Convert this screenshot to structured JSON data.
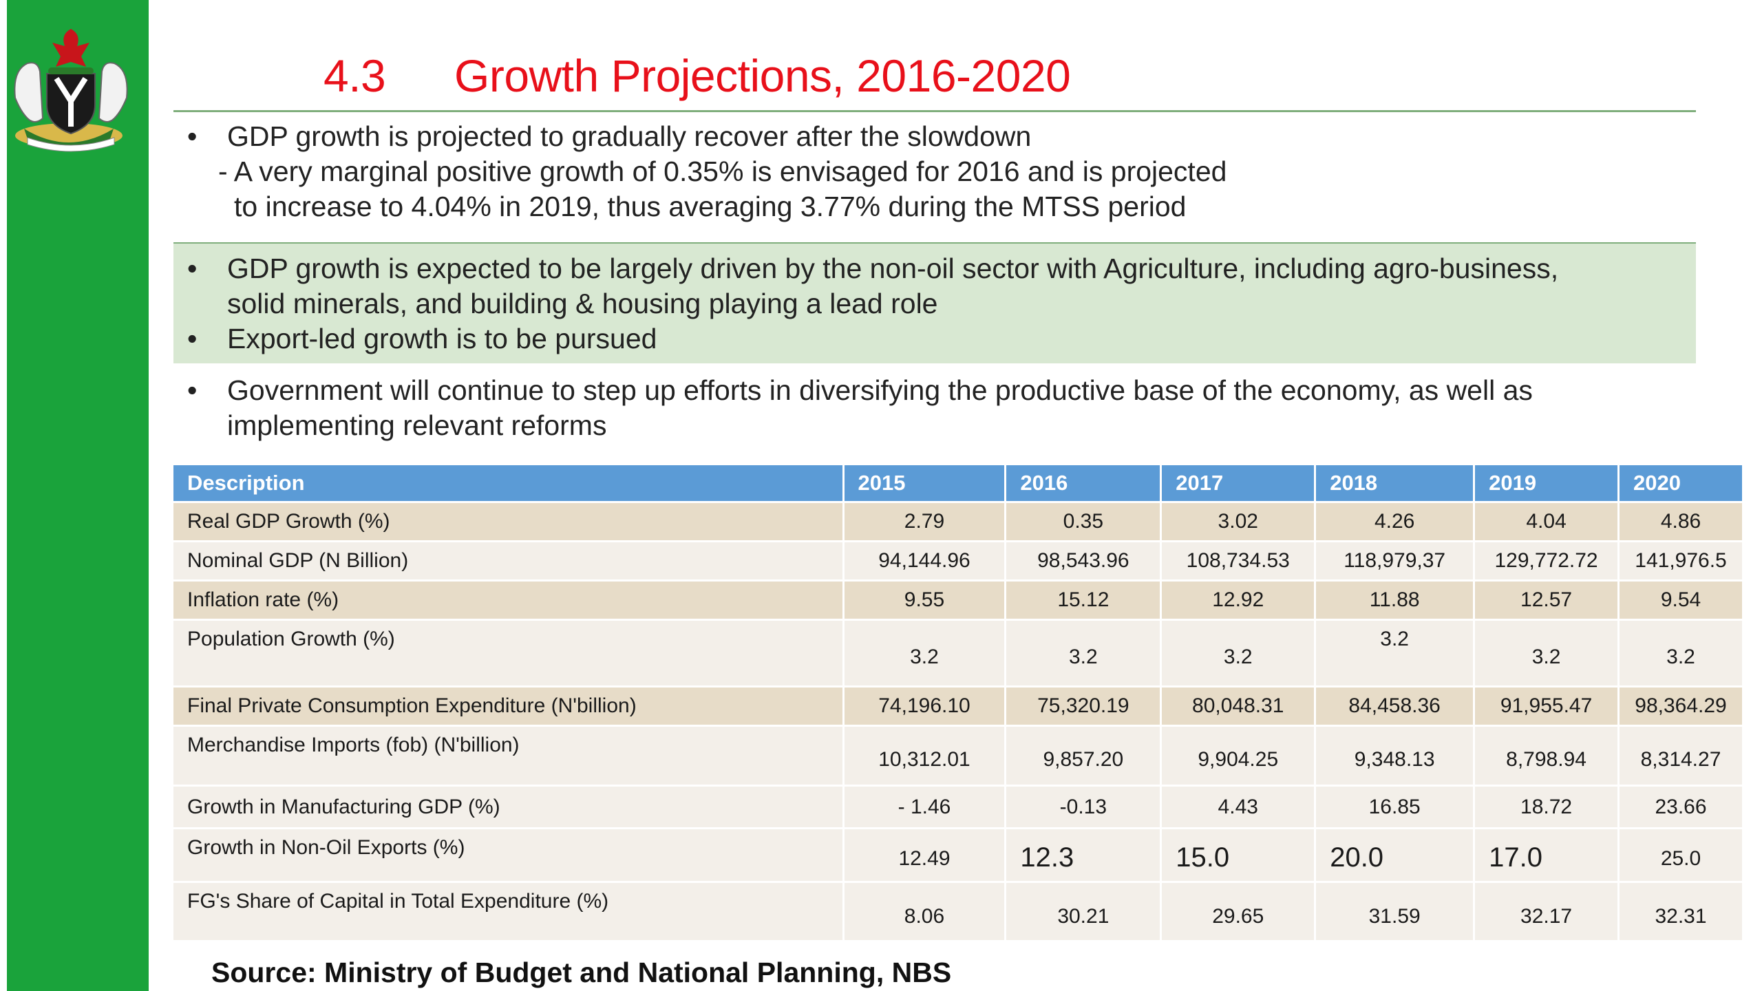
{
  "title": {
    "number": "4.3",
    "text": "Growth Projections, 2016-2020"
  },
  "section1": {
    "bullet": "GDP growth is projected to gradually recover after the slowdown",
    "sub_line1": "- A very marginal positive growth of 0.35% is envisaged for 2016 and is projected",
    "sub_line2": "to increase to 4.04% in 2019, thus averaging 3.77% during the MTSS period"
  },
  "section2": {
    "bullet1_line1": "GDP growth is expected to be largely driven by the non-oil sector with Agriculture, including agro-business,",
    "bullet1_line2": "solid minerals, and building & housing playing a lead role",
    "bullet2": "Export-led growth is to be pursued"
  },
  "section3": {
    "line1": "Government will continue to step up efforts in diversifying the productive base of the economy, as well as",
    "line2": "implementing relevant reforms"
  },
  "bullet_char": "•",
  "table": {
    "headers": [
      "Description",
      "2015",
      "2016",
      "2017",
      "2018",
      "2019",
      "2020"
    ],
    "rows": [
      [
        "Real GDP Growth (%)",
        "2.79",
        "0.35",
        "3.02",
        "4.26",
        "4.04",
        "4.86"
      ],
      [
        "Nominal GDP (N Billion)",
        "94,144.96",
        "98,543.96",
        "108,734.53",
        "118,979,37",
        "129,772.72",
        "141,976.5"
      ],
      [
        "Inflation rate (%)",
        "9.55",
        "15.12",
        "12.92",
        "11.88",
        "12.57",
        "9.54"
      ],
      [
        "Population Growth (%)",
        "3.2",
        "3.2",
        "3.2",
        "3.2",
        "3.2",
        "3.2"
      ],
      [
        "Final Private Consumption Expenditure (N'billion)",
        "74,196.10",
        "75,320.19",
        "80,048.31",
        "84,458.36",
        "91,955.47",
        "98,364.29"
      ],
      [
        "Merchandise Imports (fob) (N'billion)",
        "10,312.01",
        "9,857.20",
        "9,904.25",
        "9,348.13",
        "8,798.94",
        "8,314.27"
      ],
      [
        "Growth in Manufacturing GDP (%)",
        "- 1.46",
        "-0.13",
        "4.43",
        "16.85",
        "18.72",
        "23.66"
      ],
      [
        "Growth in Non-Oil Exports (%)",
        "12.49",
        "12.3",
        "15.0",
        "20.0",
        "17.0",
        "25.0"
      ],
      [
        "FG's Share of Capital in Total Expenditure (%)",
        "8.06",
        "30.21",
        "29.65",
        "31.59",
        "32.17",
        "32.31"
      ]
    ]
  },
  "source": "Source: Ministry of Budget and National Planning, NBS",
  "colors": {
    "green_bar": "#1aa33b",
    "title_red": "#e8101a",
    "header_blue": "#5b9bd6",
    "row_tan": "#e7dcc8",
    "row_light": "#f3efe9",
    "highlight_green": "#d8e8d2"
  },
  "icons": {
    "crest": "nigeria-coat-of-arms-icon"
  }
}
